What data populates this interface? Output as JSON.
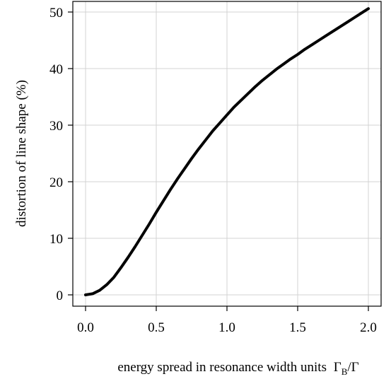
{
  "chart_data": {
    "type": "line",
    "title": "",
    "xlabel": "energy spread in resonance width units",
    "xlabel_math": {
      "base": "Γ",
      "sub": "B",
      "slash": "/",
      "den": "Γ"
    },
    "ylabel": "distortion of line shape (%)",
    "xlim": [
      0.0,
      2.0
    ],
    "ylim": [
      0,
      50
    ],
    "x_ticks": [
      "0.0",
      "0.5",
      "1.0",
      "1.5",
      "2.0"
    ],
    "y_ticks": [
      "0",
      "10",
      "20",
      "30",
      "40",
      "50"
    ],
    "grid": true,
    "series": [
      {
        "color": "#000000",
        "x": [
          0.0,
          0.05,
          0.1,
          0.15,
          0.2,
          0.25,
          0.3,
          0.35,
          0.4,
          0.45,
          0.5,
          0.55,
          0.6,
          0.65,
          0.7,
          0.75,
          0.8,
          0.85,
          0.9,
          0.95,
          1.0,
          1.05,
          1.1,
          1.15,
          1.2,
          1.25,
          1.3,
          1.35,
          1.4,
          1.45,
          1.5,
          1.55,
          1.6,
          1.65,
          1.7,
          1.75,
          1.8,
          1.85,
          1.9,
          1.95,
          2.0
        ],
        "y": [
          0.0,
          0.2,
          0.8,
          1.8,
          3.1,
          4.8,
          6.6,
          8.5,
          10.5,
          12.5,
          14.6,
          16.6,
          18.6,
          20.5,
          22.3,
          24.1,
          25.8,
          27.4,
          29.0,
          30.4,
          31.8,
          33.2,
          34.4,
          35.6,
          36.8,
          37.9,
          38.9,
          39.9,
          40.8,
          41.7,
          42.5,
          43.4,
          44.2,
          45.0,
          45.8,
          46.6,
          47.4,
          48.2,
          49.0,
          49.8,
          50.6
        ]
      }
    ]
  }
}
